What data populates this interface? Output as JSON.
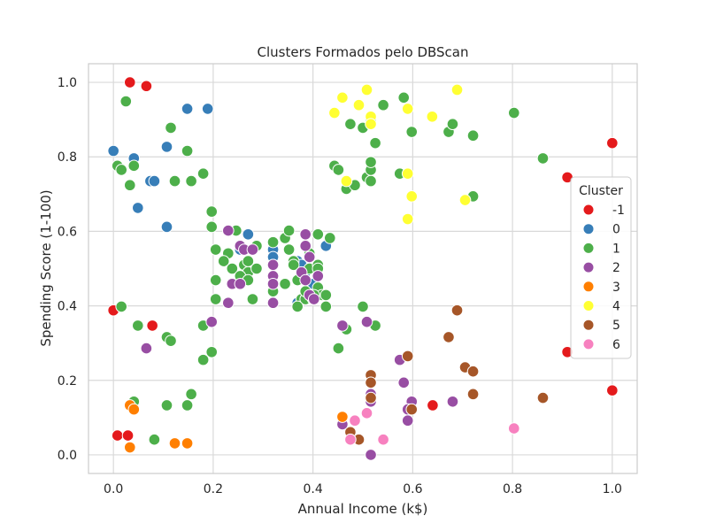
{
  "chart_data": {
    "type": "scatter",
    "title": "Clusters Formados pelo DBScan",
    "xlabel": "Annual Income (k$)",
    "ylabel": "Spending Score (1-100)",
    "xlim": [
      -0.05,
      1.05
    ],
    "ylim": [
      -0.05,
      1.05
    ],
    "xticks": [
      0.0,
      0.2,
      0.4,
      0.6,
      0.8,
      1.0
    ],
    "yticks": [
      0.0,
      0.2,
      0.4,
      0.6,
      0.8,
      1.0
    ],
    "xtick_labels": [
      "0.0",
      "0.2",
      "0.4",
      "0.6",
      "0.8",
      "1.0"
    ],
    "ytick_labels": [
      "0.0",
      "0.2",
      "0.4",
      "0.6",
      "0.8",
      "1.0"
    ],
    "grid": true,
    "legend": {
      "title": "Cluster",
      "placement": "right"
    },
    "series": [
      {
        "name": "-1",
        "color": "#e41a1c",
        "points": [
          [
            0.033,
            1.0
          ],
          [
            0.066,
            0.99
          ],
          [
            0.0,
            0.388
          ],
          [
            0.078,
            0.347
          ],
          [
            0.008,
            0.052
          ],
          [
            0.029,
            0.052
          ],
          [
            1.0,
            0.837
          ],
          [
            0.91,
            0.745
          ],
          [
            0.91,
            0.276
          ],
          [
            1.0,
            0.173
          ],
          [
            0.64,
            0.133
          ]
        ]
      },
      {
        "name": "0",
        "color": "#377eb8",
        "points": [
          [
            0.0,
            0.816
          ],
          [
            0.041,
            0.796
          ],
          [
            0.148,
            0.929
          ],
          [
            0.189,
            0.929
          ],
          [
            0.107,
            0.827
          ],
          [
            0.074,
            0.735
          ],
          [
            0.082,
            0.735
          ],
          [
            0.049,
            0.663
          ],
          [
            0.107,
            0.612
          ],
          [
            0.246,
            0.602
          ],
          [
            0.27,
            0.592
          ],
          [
            0.254,
            0.551
          ],
          [
            0.32,
            0.551
          ],
          [
            0.32,
            0.531
          ],
          [
            0.369,
            0.52
          ],
          [
            0.377,
            0.51
          ],
          [
            0.385,
            0.49
          ],
          [
            0.369,
            0.408
          ],
          [
            0.4,
            0.459
          ],
          [
            0.426,
            0.561
          ]
        ]
      },
      {
        "name": "1",
        "color": "#4daf4a",
        "points": [
          [
            0.025,
            0.949
          ],
          [
            0.008,
            0.776
          ],
          [
            0.016,
            0.765
          ],
          [
            0.041,
            0.776
          ],
          [
            0.033,
            0.724
          ],
          [
            0.115,
            0.878
          ],
          [
            0.148,
            0.816
          ],
          [
            0.123,
            0.735
          ],
          [
            0.156,
            0.735
          ],
          [
            0.18,
            0.755
          ],
          [
            0.197,
            0.653
          ],
          [
            0.197,
            0.612
          ],
          [
            0.205,
            0.551
          ],
          [
            0.246,
            0.602
          ],
          [
            0.23,
            0.541
          ],
          [
            0.221,
            0.52
          ],
          [
            0.238,
            0.5
          ],
          [
            0.262,
            0.51
          ],
          [
            0.27,
            0.52
          ],
          [
            0.287,
            0.561
          ],
          [
            0.27,
            0.49
          ],
          [
            0.254,
            0.48
          ],
          [
            0.238,
            0.459
          ],
          [
            0.27,
            0.469
          ],
          [
            0.205,
            0.469
          ],
          [
            0.205,
            0.418
          ],
          [
            0.279,
            0.418
          ],
          [
            0.287,
            0.5
          ],
          [
            0.32,
            0.571
          ],
          [
            0.344,
            0.582
          ],
          [
            0.352,
            0.602
          ],
          [
            0.32,
            0.51
          ],
          [
            0.32,
            0.459
          ],
          [
            0.32,
            0.439
          ],
          [
            0.344,
            0.459
          ],
          [
            0.352,
            0.551
          ],
          [
            0.361,
            0.52
          ],
          [
            0.369,
            0.469
          ],
          [
            0.377,
            0.418
          ],
          [
            0.385,
            0.418
          ],
          [
            0.361,
            0.51
          ],
          [
            0.393,
            0.541
          ],
          [
            0.393,
            0.5
          ],
          [
            0.41,
            0.592
          ],
          [
            0.41,
            0.51
          ],
          [
            0.41,
            0.5
          ],
          [
            0.434,
            0.582
          ],
          [
            0.4,
            0.418
          ],
          [
            0.41,
            0.449
          ],
          [
            0.418,
            0.429
          ],
          [
            0.369,
            0.398
          ],
          [
            0.385,
            0.439
          ],
          [
            0.402,
            0.429
          ],
          [
            0.426,
            0.398
          ],
          [
            0.426,
            0.429
          ],
          [
            0.016,
            0.398
          ],
          [
            0.049,
            0.347
          ],
          [
            0.107,
            0.316
          ],
          [
            0.115,
            0.306
          ],
          [
            0.18,
            0.347
          ],
          [
            0.197,
            0.276
          ],
          [
            0.18,
            0.255
          ],
          [
            0.041,
            0.143
          ],
          [
            0.082,
            0.041
          ],
          [
            0.107,
            0.133
          ],
          [
            0.148,
            0.133
          ],
          [
            0.156,
            0.163
          ],
          [
            0.443,
            0.776
          ],
          [
            0.451,
            0.765
          ],
          [
            0.467,
            0.714
          ],
          [
            0.475,
            0.888
          ],
          [
            0.484,
            0.724
          ],
          [
            0.5,
            0.878
          ],
          [
            0.508,
            0.745
          ],
          [
            0.516,
            0.735
          ],
          [
            0.516,
            0.765
          ],
          [
            0.516,
            0.786
          ],
          [
            0.516,
            0.898
          ],
          [
            0.525,
            0.837
          ],
          [
            0.541,
            0.939
          ],
          [
            0.574,
            0.755
          ],
          [
            0.582,
            0.959
          ],
          [
            0.598,
            0.867
          ],
          [
            0.672,
            0.867
          ],
          [
            0.68,
            0.888
          ],
          [
            0.721,
            0.857
          ],
          [
            0.721,
            0.694
          ],
          [
            0.803,
            0.918
          ],
          [
            0.861,
            0.796
          ],
          [
            0.451,
            0.286
          ],
          [
            0.467,
            0.337
          ],
          [
            0.5,
            0.398
          ],
          [
            0.525,
            0.347
          ]
        ]
      },
      {
        "name": "2",
        "color": "#984ea3",
        "points": [
          [
            0.23,
            0.602
          ],
          [
            0.254,
            0.561
          ],
          [
            0.262,
            0.551
          ],
          [
            0.279,
            0.551
          ],
          [
            0.238,
            0.459
          ],
          [
            0.254,
            0.459
          ],
          [
            0.23,
            0.408
          ],
          [
            0.32,
            0.51
          ],
          [
            0.32,
            0.48
          ],
          [
            0.32,
            0.459
          ],
          [
            0.32,
            0.408
          ],
          [
            0.385,
            0.592
          ],
          [
            0.385,
            0.561
          ],
          [
            0.393,
            0.531
          ],
          [
            0.377,
            0.49
          ],
          [
            0.385,
            0.469
          ],
          [
            0.393,
            0.429
          ],
          [
            0.402,
            0.418
          ],
          [
            0.41,
            0.48
          ],
          [
            0.197,
            0.357
          ],
          [
            0.066,
            0.286
          ],
          [
            0.459,
            0.347
          ],
          [
            0.508,
            0.357
          ],
          [
            0.574,
            0.255
          ],
          [
            0.582,
            0.194
          ],
          [
            0.598,
            0.143
          ],
          [
            0.59,
            0.122
          ],
          [
            0.59,
            0.092
          ],
          [
            0.516,
            0.163
          ],
          [
            0.516,
            0.143
          ],
          [
            0.459,
            0.082
          ],
          [
            0.516,
            0.0
          ],
          [
            0.68,
            0.143
          ]
        ]
      },
      {
        "name": "3",
        "color": "#ff7f00",
        "points": [
          [
            0.033,
            0.133
          ],
          [
            0.041,
            0.122
          ],
          [
            0.033,
            0.02
          ],
          [
            0.123,
            0.031
          ],
          [
            0.148,
            0.031
          ],
          [
            0.459,
            0.102
          ]
        ]
      },
      {
        "name": "4",
        "color": "#ffff33",
        "points": [
          [
            0.443,
            0.918
          ],
          [
            0.459,
            0.959
          ],
          [
            0.467,
            0.735
          ],
          [
            0.492,
            0.939
          ],
          [
            0.508,
            0.98
          ],
          [
            0.516,
            0.908
          ],
          [
            0.516,
            0.888
          ],
          [
            0.59,
            0.929
          ],
          [
            0.59,
            0.755
          ],
          [
            0.598,
            0.694
          ],
          [
            0.59,
            0.633
          ],
          [
            0.639,
            0.908
          ],
          [
            0.689,
            0.98
          ],
          [
            0.705,
            0.684
          ]
        ]
      },
      {
        "name": "5",
        "color": "#a65628",
        "points": [
          [
            0.516,
            0.214
          ],
          [
            0.516,
            0.194
          ],
          [
            0.516,
            0.153
          ],
          [
            0.475,
            0.061
          ],
          [
            0.492,
            0.041
          ],
          [
            0.59,
            0.265
          ],
          [
            0.598,
            0.122
          ],
          [
            0.672,
            0.316
          ],
          [
            0.689,
            0.388
          ],
          [
            0.705,
            0.235
          ],
          [
            0.721,
            0.224
          ],
          [
            0.721,
            0.163
          ],
          [
            0.861,
            0.153
          ]
        ]
      },
      {
        "name": "6",
        "color": "#f781bf",
        "points": [
          [
            0.484,
            0.092
          ],
          [
            0.508,
            0.112
          ],
          [
            0.475,
            0.041
          ],
          [
            0.541,
            0.041
          ],
          [
            0.803,
            0.071
          ]
        ]
      }
    ]
  }
}
